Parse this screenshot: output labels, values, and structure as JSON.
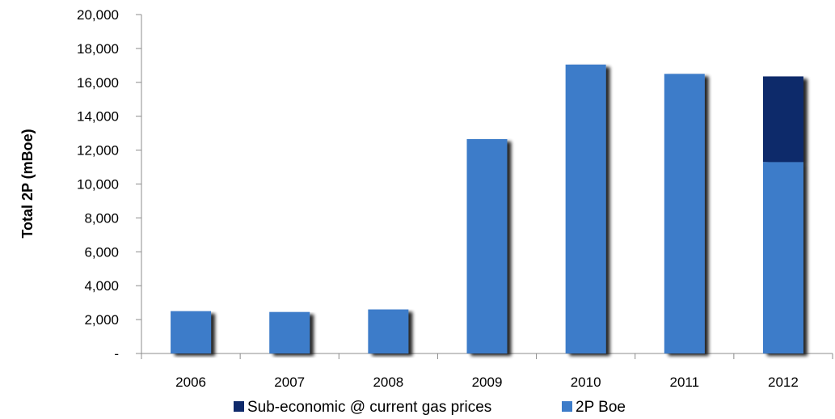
{
  "chart_data": {
    "type": "bar",
    "stacked": true,
    "categories": [
      "2006",
      "2007",
      "2008",
      "2009",
      "2010",
      "2011",
      "2012"
    ],
    "series": [
      {
        "name": "2P Boe",
        "color": "#3d7cc9",
        "values": [
          2500,
          2450,
          2600,
          12650,
          17050,
          16500,
          11300
        ]
      },
      {
        "name": "Sub-economic @ current gas prices",
        "color": "#0f2a6b",
        "values": [
          0,
          0,
          0,
          0,
          0,
          0,
          5050
        ]
      }
    ],
    "ylabel": "Total 2P (mBoe)",
    "xlabel": "",
    "ylim": [
      0,
      20000
    ],
    "y_ticks": [
      0,
      2000,
      4000,
      6000,
      8000,
      10000,
      12000,
      14000,
      16000,
      18000,
      20000
    ],
    "y_tick_labels": [
      "-",
      "2,000",
      "4,000",
      "6,000",
      "8,000",
      "10,000",
      "12,000",
      "14,000",
      "16,000",
      "18,000",
      "20,000"
    ],
    "legend": {
      "position": "bottom",
      "entries": [
        "Sub-economic @ current gas prices",
        "2P Boe"
      ]
    },
    "grid": false
  }
}
